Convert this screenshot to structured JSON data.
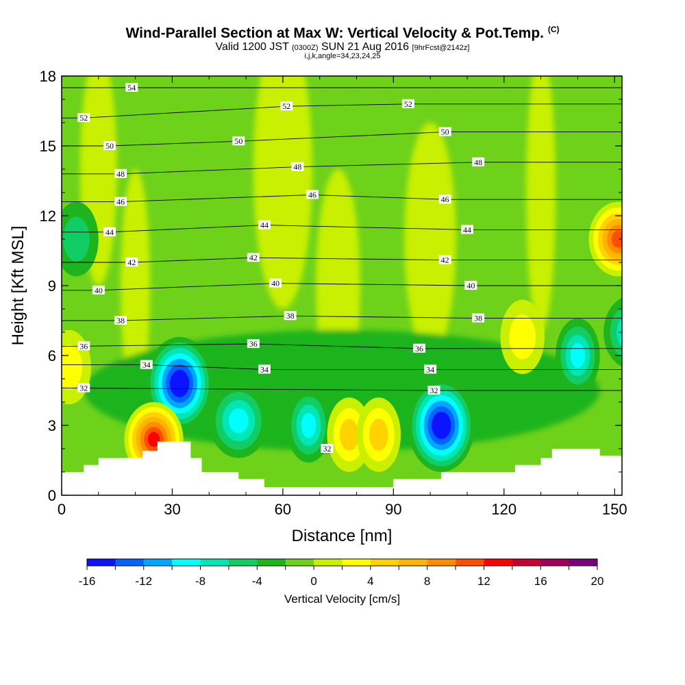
{
  "title": {
    "line1": "Wind-Parallel Section at Max W: Vertical Velocity & Pot.Temp.",
    "copyright": "(C)",
    "line2_a": "Valid 1200 JST",
    "line2_b": "(0300Z)",
    "line2_c": "SUN 21 Aug 2016",
    "line2_d": "[9hrFcst@2142z]",
    "line3": "i,j,k,angle=34,23,24,25"
  },
  "chart_data": {
    "type": "heatmap",
    "xlabel": "Distance [nm]",
    "ylabel": "Height [Kft MSL]",
    "xlim": [
      0,
      152
    ],
    "ylim": [
      0,
      18
    ],
    "xticks": [
      "0",
      "30",
      "60",
      "90",
      "120",
      "150"
    ],
    "xtick_values": [
      0,
      30,
      60,
      90,
      120,
      150
    ],
    "yticks": [
      "0",
      "3",
      "6",
      "9",
      "12",
      "15",
      "18"
    ],
    "ytick_values": [
      0,
      3,
      6,
      9,
      12,
      15,
      18
    ],
    "colorbar": {
      "label": "Vertical Velocity [cm/s]",
      "bounds": [
        -16,
        -14,
        -12,
        -10,
        -8,
        -6,
        -4,
        -2,
        0,
        2,
        4,
        6,
        8,
        10,
        12,
        14,
        16,
        18,
        20
      ],
      "tick_labels": [
        "-16",
        "-12",
        "-8",
        "-4",
        "0",
        "4",
        "8",
        "12",
        "16",
        "20"
      ],
      "tick_values": [
        -16,
        -12,
        -8,
        -4,
        0,
        4,
        8,
        12,
        16,
        20
      ],
      "colors": [
        "#0a14ff",
        "#0064ff",
        "#00a5ff",
        "#00ffff",
        "#00e6b4",
        "#12cc64",
        "#1eb41e",
        "#6ed21a",
        "#c8f000",
        "#ffff00",
        "#ffd200",
        "#ffb400",
        "#ff8c00",
        "#ff5000",
        "#ff0000",
        "#c80032",
        "#a0005a",
        "#78007d"
      ]
    },
    "terrain": [
      [
        0,
        1
      ],
      [
        6,
        1
      ],
      [
        6,
        1.3
      ],
      [
        10,
        1.3
      ],
      [
        10,
        1.6
      ],
      [
        22,
        1.6
      ],
      [
        22,
        1.9
      ],
      [
        26,
        1.9
      ],
      [
        26,
        2.3
      ],
      [
        35,
        2.3
      ],
      [
        35,
        1.6
      ],
      [
        38,
        1.6
      ],
      [
        38,
        1
      ],
      [
        48,
        1
      ],
      [
        48,
        0.7
      ],
      [
        55,
        0.7
      ],
      [
        55,
        0.35
      ],
      [
        90,
        0.35
      ],
      [
        90,
        0.7
      ],
      [
        103,
        0.7
      ],
      [
        103,
        1
      ],
      [
        123,
        1
      ],
      [
        123,
        1.3
      ],
      [
        130,
        1.3
      ],
      [
        130,
        1.6
      ],
      [
        133,
        1.6
      ],
      [
        133,
        2
      ],
      [
        146,
        2
      ],
      [
        146,
        1.7
      ],
      [
        152,
        1.7
      ]
    ],
    "contours": [
      {
        "level": "32",
        "label_points": [
          [
            6,
            4.6
          ],
          [
            101,
            4.5
          ],
          [
            72,
            2.0
          ]
        ]
      },
      {
        "level": "34",
        "label_points": [
          [
            23,
            5.6
          ],
          [
            55,
            5.4
          ],
          [
            100,
            5.4
          ]
        ]
      },
      {
        "level": "36",
        "label_points": [
          [
            6,
            6.4
          ],
          [
            52,
            6.5
          ],
          [
            97,
            6.3
          ]
        ]
      },
      {
        "level": "38",
        "label_points": [
          [
            16,
            7.5
          ],
          [
            62,
            7.7
          ],
          [
            113,
            7.6
          ]
        ]
      },
      {
        "level": "40",
        "label_points": [
          [
            10,
            8.8
          ],
          [
            58,
            9.1
          ],
          [
            111,
            9.0
          ]
        ]
      },
      {
        "level": "42",
        "label_points": [
          [
            19,
            10.0
          ],
          [
            52,
            10.2
          ],
          [
            104,
            10.1
          ]
        ]
      },
      {
        "level": "44",
        "label_points": [
          [
            13,
            11.3
          ],
          [
            55,
            11.6
          ],
          [
            110,
            11.4
          ]
        ]
      },
      {
        "level": "46",
        "label_points": [
          [
            16,
            12.6
          ],
          [
            68,
            12.9
          ],
          [
            104,
            12.7
          ]
        ]
      },
      {
        "level": "48",
        "label_points": [
          [
            16,
            13.8
          ],
          [
            64,
            14.1
          ],
          [
            113,
            14.3
          ]
        ]
      },
      {
        "level": "50",
        "label_points": [
          [
            13,
            15.0
          ],
          [
            48,
            15.2
          ],
          [
            104,
            15.6
          ]
        ]
      },
      {
        "level": "52",
        "label_points": [
          [
            6,
            16.2
          ],
          [
            61,
            16.7
          ],
          [
            94,
            16.8
          ]
        ]
      },
      {
        "level": "54",
        "label_points": [
          [
            19,
            17.5
          ]
        ]
      }
    ],
    "velocity_features": [
      {
        "x": 32,
        "y": 4.8,
        "value": -16
      },
      {
        "x": 103,
        "y": 3.0,
        "value": -16
      },
      {
        "x": 48,
        "y": 3.2,
        "value": -9
      },
      {
        "x": 67,
        "y": 3.0,
        "value": -8
      },
      {
        "x": 155,
        "y": 7.0,
        "value": -9
      },
      {
        "x": 140,
        "y": 6.0,
        "value": -8
      },
      {
        "x": 4,
        "y": 11,
        "value": -4
      },
      {
        "x": 25,
        "y": 2.4,
        "value": 13
      },
      {
        "x": 78,
        "y": 2.6,
        "value": 6
      },
      {
        "x": 86,
        "y": 2.6,
        "value": 5
      },
      {
        "x": 151,
        "y": 11,
        "value": 11
      },
      {
        "x": 125,
        "y": 6.8,
        "value": 4
      },
      {
        "x": 2,
        "y": 5.5,
        "value": 4
      }
    ]
  }
}
